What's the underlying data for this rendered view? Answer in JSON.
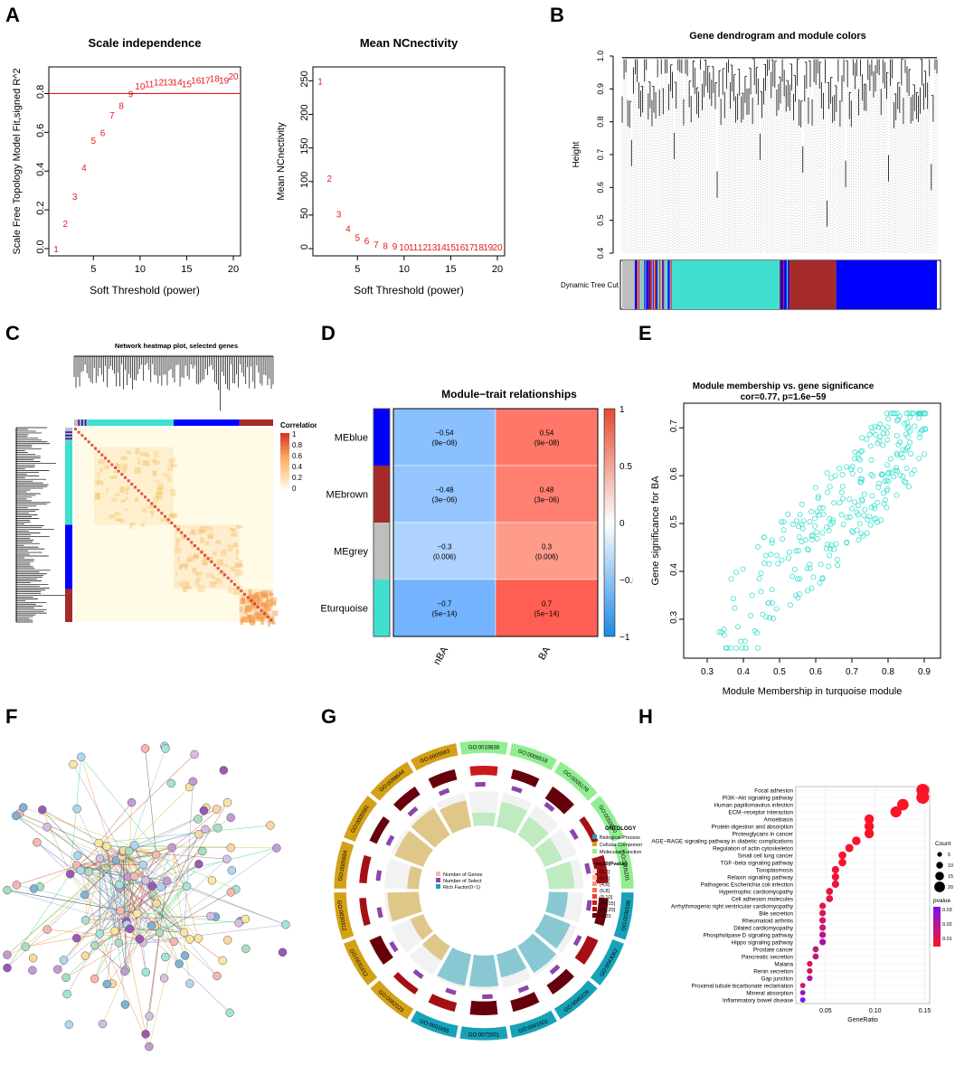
{
  "panels": {
    "A": "A",
    "B": "B",
    "C": "C",
    "D": "D",
    "E": "E",
    "F": "F",
    "G": "G",
    "H": "H"
  },
  "colors": {
    "red": "#e41a1c",
    "turquoise": "#40e0d0",
    "blue": "#0000ff",
    "brown": "#a52a2a",
    "grey": "#bebebe",
    "heat_low": "#fffbe6",
    "heat_high": "#d73027"
  },
  "chart_data": [
    {
      "id": "A1",
      "type": "scatter",
      "title": "Scale independence",
      "xlabel": "Soft Threshold (power)",
      "ylabel": "Scale Free Topology Model Fit,signed R^2",
      "xlim": [
        1,
        20
      ],
      "ylim": [
        0,
        0.9
      ],
      "xticks": [
        5,
        10,
        15,
        20
      ],
      "yticks": [
        0.0,
        0.2,
        0.4,
        0.6,
        0.8
      ],
      "hline": 0.8,
      "points": [
        {
          "x": 1,
          "y": 0.0,
          "label": "1"
        },
        {
          "x": 2,
          "y": 0.13,
          "label": "2"
        },
        {
          "x": 3,
          "y": 0.27,
          "label": "3"
        },
        {
          "x": 4,
          "y": 0.42,
          "label": "4"
        },
        {
          "x": 5,
          "y": 0.56,
          "label": "5"
        },
        {
          "x": 6,
          "y": 0.6,
          "label": "6"
        },
        {
          "x": 7,
          "y": 0.69,
          "label": "7"
        },
        {
          "x": 8,
          "y": 0.74,
          "label": "8"
        },
        {
          "x": 9,
          "y": 0.8,
          "label": "9"
        },
        {
          "x": 10,
          "y": 0.84,
          "label": "10"
        },
        {
          "x": 11,
          "y": 0.85,
          "label": "11"
        },
        {
          "x": 12,
          "y": 0.86,
          "label": "12"
        },
        {
          "x": 13,
          "y": 0.86,
          "label": "13"
        },
        {
          "x": 14,
          "y": 0.86,
          "label": "14"
        },
        {
          "x": 15,
          "y": 0.85,
          "label": "15"
        },
        {
          "x": 16,
          "y": 0.87,
          "label": "16"
        },
        {
          "x": 17,
          "y": 0.87,
          "label": "17"
        },
        {
          "x": 18,
          "y": 0.88,
          "label": "18"
        },
        {
          "x": 19,
          "y": 0.87,
          "label": "19"
        },
        {
          "x": 20,
          "y": 0.89,
          "label": "20"
        }
      ]
    },
    {
      "id": "A2",
      "type": "scatter",
      "title": "Mean NCnectivity",
      "xlabel": "Soft Threshold (power)",
      "ylabel": "Mean NCnectivity",
      "xlim": [
        1,
        20
      ],
      "ylim": [
        0,
        260
      ],
      "xticks": [
        5,
        10,
        15,
        20
      ],
      "yticks": [
        0,
        50,
        100,
        150,
        200,
        250
      ],
      "points": [
        {
          "x": 1,
          "y": 250,
          "label": "1"
        },
        {
          "x": 2,
          "y": 105,
          "label": "2"
        },
        {
          "x": 3,
          "y": 52,
          "label": "3"
        },
        {
          "x": 4,
          "y": 30,
          "label": "4"
        },
        {
          "x": 5,
          "y": 17,
          "label": "5"
        },
        {
          "x": 6,
          "y": 12,
          "label": "6"
        },
        {
          "x": 7,
          "y": 7,
          "label": "7"
        },
        {
          "x": 8,
          "y": 5,
          "label": "8"
        },
        {
          "x": 9,
          "y": 4,
          "label": "9"
        },
        {
          "x": 10,
          "y": 3,
          "label": "10"
        },
        {
          "x": 11,
          "y": 3,
          "label": "11"
        },
        {
          "x": 12,
          "y": 3,
          "label": "12"
        },
        {
          "x": 13,
          "y": 3,
          "label": "13"
        },
        {
          "x": 14,
          "y": 3,
          "label": "14"
        },
        {
          "x": 15,
          "y": 3,
          "label": "15"
        },
        {
          "x": 16,
          "y": 3,
          "label": "16"
        },
        {
          "x": 17,
          "y": 3,
          "label": "17"
        },
        {
          "x": 18,
          "y": 3,
          "label": "18"
        },
        {
          "x": 19,
          "y": 3,
          "label": "19"
        },
        {
          "x": 20,
          "y": 3,
          "label": "20"
        }
      ]
    },
    {
      "id": "B",
      "type": "dendrogram",
      "title": "Gene dendrogram and module colors",
      "ylabel": "Height",
      "yticks": [
        0.4,
        0.5,
        0.6,
        0.7,
        0.8,
        0.9,
        1.0
      ],
      "row_label": "Dynamic Tree Cut",
      "modules": [
        {
          "name": "grey",
          "from": 0.0,
          "to": 0.04
        },
        {
          "name": "mixed",
          "from": 0.04,
          "to": 0.16
        },
        {
          "name": "turquoise",
          "from": 0.16,
          "to": 0.5
        },
        {
          "name": "blue-strip",
          "from": 0.5,
          "to": 0.53
        },
        {
          "name": "brown",
          "from": 0.53,
          "to": 0.68
        },
        {
          "name": "blue",
          "from": 0.68,
          "to": 1.0
        }
      ]
    },
    {
      "id": "C",
      "type": "heatmap",
      "title": "Network heatmap plot, selected genes",
      "legend_title": "Correlation",
      "legend_ticks": [
        "1",
        "0.8",
        "0.6",
        "0.4",
        "0.2",
        "0"
      ],
      "blocks": [
        {
          "name": "turquoise",
          "from": 0.02,
          "to": 0.5
        },
        {
          "name": "blue",
          "from": 0.5,
          "to": 0.83
        },
        {
          "name": "brown",
          "from": 0.83,
          "to": 1.0
        }
      ]
    },
    {
      "id": "D",
      "type": "heatmap",
      "title": "Module−trait relationships",
      "columns": [
        "nBA",
        "BA"
      ],
      "rows": [
        "MEblue",
        "MEbrown",
        "MEgrey",
        "MEturquoise"
      ],
      "row_colors": [
        "#0000ff",
        "#a52a2a",
        "#bebebe",
        "#40e0d0"
      ],
      "values": [
        [
          -0.54,
          0.54
        ],
        [
          -0.48,
          0.48
        ],
        [
          -0.3,
          0.3
        ],
        [
          -0.7,
          0.7
        ]
      ],
      "cells": [
        [
          {
            "r": "−0.54",
            "p": "(9e−08)"
          },
          {
            "r": "0.54",
            "p": "(9e−08)"
          }
        ],
        [
          {
            "r": "−0.48",
            "p": "(3e−06)"
          },
          {
            "r": "0.48",
            "p": "(3e−06)"
          }
        ],
        [
          {
            "r": "−0.3",
            "p": "(0.006)"
          },
          {
            "r": "0.3",
            "p": "(0.006)"
          }
        ],
        [
          {
            "r": "−0.7",
            "p": "(5e−14)"
          },
          {
            "r": "0.7",
            "p": "(5e−14)"
          }
        ]
      ],
      "legend_ticks": [
        "1",
        "0.5",
        "0",
        "−0.5",
        "−1"
      ]
    },
    {
      "id": "E",
      "type": "scatter",
      "title": "Module membership vs. gene significance",
      "subtitle": "cor=0.77, p=1.6e−59",
      "xlabel": "Module Membership in turquoise module",
      "ylabel": "Gene significance for  BA",
      "xlim": [
        0.25,
        0.93
      ],
      "ylim": [
        0.23,
        0.74
      ],
      "xticks": [
        "0.3",
        "0.4",
        "0.5",
        "0.6",
        "0.7",
        "0.8",
        "0.9"
      ],
      "yticks": [
        "0.3",
        "0.4",
        "0.5",
        "0.6",
        "0.7"
      ],
      "n_points": 300,
      "cor": 0.77
    },
    {
      "id": "F",
      "type": "network",
      "description_nodes": 130
    },
    {
      "id": "G",
      "type": "circos",
      "segments": [
        {
          "id": "GO:0019838",
          "cat": "MF"
        },
        {
          "id": "GO:0005518",
          "cat": "MF"
        },
        {
          "id": "GO:0005178",
          "cat": "MF"
        },
        {
          "id": "GO:0050840",
          "cat": "MF"
        },
        {
          "id": "GO:0005201",
          "cat": "MF"
        },
        {
          "id": "GO:0030198",
          "cat": "BP"
        },
        {
          "id": "GO:0043062",
          "cat": "BP"
        },
        {
          "id": "GO:0045229",
          "cat": "BP"
        },
        {
          "id": "GO:0001501",
          "cat": "BP"
        },
        {
          "id": "GO:0072001",
          "cat": "BP"
        },
        {
          "id": "GO:0001655",
          "cat": "BP"
        },
        {
          "id": "GO:0062023",
          "cat": "CC"
        },
        {
          "id": "GO:0031012",
          "cat": "CC"
        },
        {
          "id": "GO:0030312",
          "cat": "CC"
        },
        {
          "id": "GO:0005604",
          "cat": "CC"
        },
        {
          "id": "GO:0005581",
          "cat": "CC"
        },
        {
          "id": "GO:0098644",
          "cat": "CC"
        },
        {
          "id": "GO:0005583",
          "cat": "CC"
        }
      ],
      "legend_title": "ONTOLOGY",
      "ontology": [
        {
          "name": "Biological Process",
          "color": "#17a2b8"
        },
        {
          "name": "Cellular Component",
          "color": "#d4a017"
        },
        {
          "name": "Molecular Function",
          "color": "#90ee90"
        }
      ],
      "pval_title": "−log10(Pvalue)",
      "pval_bins": [
        {
          "label": "(0,2]",
          "color": "#fde0dd"
        },
        {
          "label": "(2,4]",
          "color": "#fcbba1"
        },
        {
          "label": "(4,6]",
          "color": "#fc9272"
        },
        {
          "label": "(6,8]",
          "color": "#fb6a4a"
        },
        {
          "label": "(8,10]",
          "color": "#ef3b2c"
        },
        {
          "label": "(10,15]",
          "color": "#cb181d"
        },
        {
          "label": "(15,20]",
          "color": "#a50f15"
        },
        {
          "label": ">=20",
          "color": "#67000d"
        }
      ],
      "shape_legend": [
        "Number of Genes",
        "Number of Select",
        "Rich Factor(0~1)"
      ]
    },
    {
      "id": "H",
      "type": "dot",
      "xlabel": "GeneRatio",
      "xticks": [
        "0.05",
        "0.10",
        "0.15"
      ],
      "xlim": [
        0.02,
        0.155
      ],
      "size_title": "Count",
      "size_ticks": [
        "5",
        "10",
        "15",
        "20"
      ],
      "color_title": "pvalue",
      "color_ticks": [
        "0.03",
        "0.02",
        "0.01"
      ],
      "terms": [
        {
          "name": "Focal adhesion",
          "ratio": 0.148,
          "count": 22,
          "p": 0.0
        },
        {
          "name": "PI3K−Akt signaling pathway",
          "ratio": 0.148,
          "count": 22,
          "p": 0.0
        },
        {
          "name": "Human papillomavirus infection",
          "ratio": 0.128,
          "count": 19,
          "p": 0.0
        },
        {
          "name": "ECM−receptor interaction",
          "ratio": 0.121,
          "count": 18,
          "p": 0.0
        },
        {
          "name": "Amoebiasis",
          "ratio": 0.094,
          "count": 14,
          "p": 0.0
        },
        {
          "name": "Protein digestion and absorption",
          "ratio": 0.094,
          "count": 14,
          "p": 0.0
        },
        {
          "name": "Proteoglycans in cancer",
          "ratio": 0.094,
          "count": 14,
          "p": 0.0
        },
        {
          "name": "AGE−RAGE signaling pathway in diabetic complications",
          "ratio": 0.081,
          "count": 12,
          "p": 0.0
        },
        {
          "name": "Regulation of actin cytoskeleton",
          "ratio": 0.074,
          "count": 11,
          "p": 0.001
        },
        {
          "name": "Small cell lung cancer",
          "ratio": 0.067,
          "count": 10,
          "p": 0.001
        },
        {
          "name": "TGF−beta signaling pathway",
          "ratio": 0.067,
          "count": 10,
          "p": 0.001
        },
        {
          "name": "Toxoplasmosis",
          "ratio": 0.06,
          "count": 9,
          "p": 0.002
        },
        {
          "name": "Relaxin signaling pathway",
          "ratio": 0.06,
          "count": 9,
          "p": 0.002
        },
        {
          "name": "Pathogenic Escherichia coli infection",
          "ratio": 0.06,
          "count": 9,
          "p": 0.003
        },
        {
          "name": "Hypertrophic cardiomyopathy",
          "ratio": 0.054,
          "count": 8,
          "p": 0.004
        },
        {
          "name": "Cell adhesion molecules",
          "ratio": 0.054,
          "count": 8,
          "p": 0.005
        },
        {
          "name": "Arrhythmogenic right ventricular cardiomyopathy",
          "ratio": 0.047,
          "count": 7,
          "p": 0.006
        },
        {
          "name": "Bile secretion",
          "ratio": 0.047,
          "count": 7,
          "p": 0.008
        },
        {
          "name": "Rheumatoid arthritis",
          "ratio": 0.047,
          "count": 7,
          "p": 0.009
        },
        {
          "name": "Dilated cardiomyopathy",
          "ratio": 0.047,
          "count": 7,
          "p": 0.012
        },
        {
          "name": "Phospholipase D signaling pathway",
          "ratio": 0.047,
          "count": 7,
          "p": 0.016
        },
        {
          "name": "Hippo signaling pathway",
          "ratio": 0.047,
          "count": 7,
          "p": 0.022
        },
        {
          "name": "Prostate cancer",
          "ratio": 0.04,
          "count": 6,
          "p": 0.012
        },
        {
          "name": "Pancreatic secretion",
          "ratio": 0.04,
          "count": 6,
          "p": 0.015
        },
        {
          "name": "Malaria",
          "ratio": 0.034,
          "count": 5,
          "p": 0.006
        },
        {
          "name": "Renin secretion",
          "ratio": 0.034,
          "count": 5,
          "p": 0.008
        },
        {
          "name": "Gap junction",
          "ratio": 0.034,
          "count": 5,
          "p": 0.02
        },
        {
          "name": "Proximal tubule bicarbonate reclamation",
          "ratio": 0.027,
          "count": 4,
          "p": 0.009
        },
        {
          "name": "Mineral absorption",
          "ratio": 0.027,
          "count": 4,
          "p": 0.025
        },
        {
          "name": "Inflammatory bowel disease",
          "ratio": 0.027,
          "count": 4,
          "p": 0.033
        }
      ]
    }
  ]
}
